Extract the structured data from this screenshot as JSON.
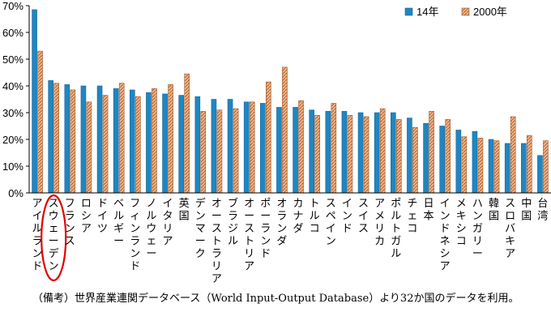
{
  "chart_data": {
    "type": "bar",
    "ylabel": "",
    "xlabel": "",
    "ylim": [
      0,
      70
    ],
    "yticks": [
      "0%",
      "10%",
      "20%",
      "30%",
      "40%",
      "50%",
      "60%",
      "70%"
    ],
    "legend_position": "top-right",
    "highlighted_category": "スウェーデン",
    "categories": [
      "アイルランド",
      "スウェーデン",
      "フランス",
      "ロシア",
      "ドイツ",
      "ベルギー",
      "フィンランド",
      "ノルウェー",
      "イタリア",
      "英国",
      "デンマーク",
      "オーストラリア",
      "ブラジル",
      "オーストリア",
      "ポーランド",
      "オランダ",
      "カナダ",
      "トルコ",
      "スペイン",
      "インド",
      "スイス",
      "アメリカ",
      "ポルトガル",
      "チェコ",
      "日本",
      "インドネシア",
      "メキシコ",
      "ハンガリー",
      "韓国",
      "スロバキア",
      "中国",
      "台湾"
    ],
    "series": [
      {
        "name": "14年",
        "color": "#1f86c2",
        "values": [
          68.5,
          42,
          40.5,
          40,
          40,
          39,
          38.5,
          37.5,
          37,
          36.5,
          36,
          35,
          35,
          34,
          33.5,
          32,
          32,
          31,
          30.5,
          30.5,
          30,
          30,
          30,
          28,
          26,
          25,
          23.5,
          23,
          20,
          18.5,
          18.5,
          14
        ]
      },
      {
        "name": "2000年",
        "color": "#f4b183",
        "values": [
          53,
          41,
          38.5,
          34,
          36.5,
          41,
          36,
          39,
          40.5,
          44.5,
          30.5,
          31,
          31.5,
          34,
          41.5,
          47,
          34.5,
          29,
          33.5,
          29,
          28.5,
          31.5,
          27.5,
          24.5,
          30.5,
          27.5,
          21,
          20.5,
          19.5,
          28.5,
          21.5,
          19.5
        ]
      }
    ]
  },
  "note": "（備考）世界産業連関データベース（World Input-Output Database）より32か国のデータを利用。"
}
